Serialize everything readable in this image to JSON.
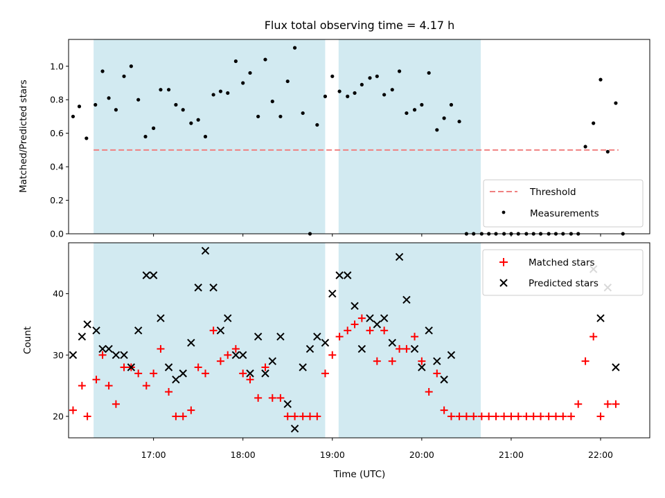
{
  "chart_data": [
    {
      "type": "scatter",
      "title": "Flux total observing time = 4.17 h",
      "ylabel": "Matched/Predicted stars",
      "xlabel": "",
      "ylim": [
        0,
        1.16
      ],
      "yticks": [
        0.0,
        0.2,
        0.4,
        0.6,
        0.8,
        1.0
      ],
      "ytick_labels": [
        "0.0",
        "0.2",
        "0.4",
        "0.6",
        "0.8",
        "1.0"
      ],
      "xlim": [
        16.05,
        22.55
      ],
      "xticks": [
        17,
        18,
        19,
        20,
        21,
        22
      ],
      "shaded_intervals": [
        [
          16.33,
          18.92
        ],
        [
          19.07,
          20.66
        ]
      ],
      "shade_color": "#add8e6",
      "threshold": {
        "name": "Threshold",
        "value": 0.5,
        "x_range": [
          16.33,
          22.2
        ],
        "color": "#f08080"
      },
      "measurements": {
        "name": "Measurements",
        "color": "#000000",
        "points": [
          [
            16.1,
            0.7
          ],
          [
            16.17,
            0.76
          ],
          [
            16.25,
            0.57
          ],
          [
            16.35,
            0.77
          ],
          [
            16.43,
            0.97
          ],
          [
            16.5,
            0.81
          ],
          [
            16.58,
            0.74
          ],
          [
            16.67,
            0.94
          ],
          [
            16.75,
            1.0
          ],
          [
            16.83,
            0.8
          ],
          [
            16.91,
            0.58
          ],
          [
            17.0,
            0.63
          ],
          [
            17.08,
            0.86
          ],
          [
            17.17,
            0.86
          ],
          [
            17.25,
            0.77
          ],
          [
            17.33,
            0.74
          ],
          [
            17.42,
            0.66
          ],
          [
            17.5,
            0.68
          ],
          [
            17.58,
            0.58
          ],
          [
            17.67,
            0.83
          ],
          [
            17.75,
            0.85
          ],
          [
            17.83,
            0.84
          ],
          [
            17.92,
            1.03
          ],
          [
            18.0,
            0.9
          ],
          [
            18.08,
            0.96
          ],
          [
            18.17,
            0.7
          ],
          [
            18.25,
            1.04
          ],
          [
            18.33,
            0.79
          ],
          [
            18.42,
            0.7
          ],
          [
            18.5,
            0.91
          ],
          [
            18.58,
            1.11
          ],
          [
            18.67,
            0.72
          ],
          [
            18.75,
            0.0
          ],
          [
            18.83,
            0.65
          ],
          [
            18.92,
            0.82
          ],
          [
            19.0,
            0.94
          ],
          [
            19.08,
            0.85
          ],
          [
            19.17,
            0.82
          ],
          [
            19.25,
            0.84
          ],
          [
            19.33,
            0.89
          ],
          [
            19.42,
            0.93
          ],
          [
            19.5,
            0.94
          ],
          [
            19.58,
            0.83
          ],
          [
            19.67,
            0.86
          ],
          [
            19.75,
            0.97
          ],
          [
            19.83,
            0.72
          ],
          [
            19.92,
            0.74
          ],
          [
            20.0,
            0.77
          ],
          [
            20.08,
            0.96
          ],
          [
            20.17,
            0.62
          ],
          [
            20.25,
            0.69
          ],
          [
            20.33,
            0.77
          ],
          [
            20.42,
            0.67
          ],
          [
            20.5,
            0.0
          ],
          [
            20.58,
            0.0
          ],
          [
            20.67,
            0.0
          ],
          [
            20.75,
            0.0
          ],
          [
            20.83,
            0.0
          ],
          [
            20.92,
            0.0
          ],
          [
            21.0,
            0.0
          ],
          [
            21.08,
            0.0
          ],
          [
            21.17,
            0.0
          ],
          [
            21.25,
            0.0
          ],
          [
            21.33,
            0.0
          ],
          [
            21.42,
            0.0
          ],
          [
            21.5,
            0.0
          ],
          [
            21.58,
            0.0
          ],
          [
            21.67,
            0.0
          ],
          [
            21.75,
            0.0
          ],
          [
            21.83,
            0.52
          ],
          [
            21.92,
            0.66
          ],
          [
            22.0,
            0.92
          ],
          [
            22.08,
            0.49
          ],
          [
            22.17,
            0.78
          ],
          [
            22.25,
            0.0
          ]
        ]
      },
      "legend": {
        "position": "lower right"
      }
    },
    {
      "type": "scatter",
      "title": "",
      "ylabel": "Count",
      "xlabel": "Time (UTC)",
      "ylim": [
        16.5,
        48.3
      ],
      "yticks": [
        20,
        30,
        40
      ],
      "ytick_labels": [
        "20",
        "30",
        "40"
      ],
      "xlim": [
        16.05,
        22.55
      ],
      "xticks": [
        17,
        18,
        19,
        20,
        21,
        22
      ],
      "xtick_labels": [
        "17:00",
        "18:00",
        "19:00",
        "20:00",
        "21:00",
        "22:00"
      ],
      "shaded_intervals": [
        [
          16.33,
          18.92
        ],
        [
          19.07,
          20.66
        ]
      ],
      "shade_color": "#add8e6",
      "series": [
        {
          "name": "Matched stars",
          "marker": "plus",
          "color": "#ff0000",
          "points": [
            [
              16.1,
              21
            ],
            [
              16.2,
              25
            ],
            [
              16.26,
              20
            ],
            [
              16.36,
              26
            ],
            [
              16.43,
              30
            ],
            [
              16.5,
              25
            ],
            [
              16.58,
              22
            ],
            [
              16.67,
              28
            ],
            [
              16.75,
              28
            ],
            [
              16.83,
              27
            ],
            [
              16.92,
              25
            ],
            [
              17.0,
              27
            ],
            [
              17.08,
              31
            ],
            [
              17.17,
              24
            ],
            [
              17.25,
              20
            ],
            [
              17.33,
              20
            ],
            [
              17.42,
              21
            ],
            [
              17.5,
              28
            ],
            [
              17.58,
              27
            ],
            [
              17.67,
              34
            ],
            [
              17.75,
              29
            ],
            [
              17.83,
              30
            ],
            [
              17.92,
              31
            ],
            [
              18.0,
              27
            ],
            [
              18.08,
              26
            ],
            [
              18.17,
              23
            ],
            [
              18.25,
              28
            ],
            [
              18.33,
              23
            ],
            [
              18.42,
              23
            ],
            [
              18.5,
              20
            ],
            [
              18.58,
              20
            ],
            [
              18.67,
              20
            ],
            [
              18.75,
              20
            ],
            [
              18.83,
              20
            ],
            [
              18.92,
              27
            ],
            [
              19.0,
              30
            ],
            [
              19.08,
              33
            ],
            [
              19.17,
              34
            ],
            [
              19.25,
              35
            ],
            [
              19.33,
              36
            ],
            [
              19.42,
              34
            ],
            [
              19.5,
              29
            ],
            [
              19.58,
              34
            ],
            [
              19.67,
              29
            ],
            [
              19.75,
              31
            ],
            [
              19.83,
              31
            ],
            [
              19.92,
              33
            ],
            [
              20.0,
              29
            ],
            [
              20.08,
              24
            ],
            [
              20.17,
              27
            ],
            [
              20.25,
              21
            ],
            [
              20.33,
              20
            ],
            [
              20.42,
              20
            ],
            [
              20.5,
              20
            ],
            [
              20.58,
              20
            ],
            [
              20.67,
              20
            ],
            [
              20.75,
              20
            ],
            [
              20.83,
              20
            ],
            [
              20.92,
              20
            ],
            [
              21.0,
              20
            ],
            [
              21.08,
              20
            ],
            [
              21.17,
              20
            ],
            [
              21.25,
              20
            ],
            [
              21.33,
              20
            ],
            [
              21.42,
              20
            ],
            [
              21.5,
              20
            ],
            [
              21.58,
              20
            ],
            [
              21.67,
              20
            ],
            [
              21.75,
              22
            ],
            [
              21.83,
              29
            ],
            [
              21.92,
              33
            ],
            [
              22.0,
              20
            ],
            [
              22.08,
              22
            ],
            [
              22.17,
              22
            ]
          ]
        },
        {
          "name": "Predicted stars",
          "marker": "x",
          "color": "#000000",
          "points": [
            [
              16.1,
              30
            ],
            [
              16.2,
              33
            ],
            [
              16.26,
              35
            ],
            [
              16.36,
              34
            ],
            [
              16.43,
              31
            ],
            [
              16.5,
              31
            ],
            [
              16.58,
              30
            ],
            [
              16.67,
              30
            ],
            [
              16.75,
              28
            ],
            [
              16.83,
              34
            ],
            [
              16.92,
              43
            ],
            [
              17.0,
              43
            ],
            [
              17.08,
              36
            ],
            [
              17.17,
              28
            ],
            [
              17.25,
              26
            ],
            [
              17.33,
              27
            ],
            [
              17.42,
              32
            ],
            [
              17.5,
              41
            ],
            [
              17.58,
              47
            ],
            [
              17.67,
              41
            ],
            [
              17.75,
              34
            ],
            [
              17.83,
              36
            ],
            [
              17.92,
              30
            ],
            [
              18.0,
              30
            ],
            [
              18.08,
              27
            ],
            [
              18.17,
              33
            ],
            [
              18.25,
              27
            ],
            [
              18.33,
              29
            ],
            [
              18.42,
              33
            ],
            [
              18.5,
              22
            ],
            [
              18.58,
              18
            ],
            [
              18.67,
              28
            ],
            [
              18.75,
              31
            ],
            [
              18.83,
              33
            ],
            [
              18.92,
              32
            ],
            [
              19.0,
              40
            ],
            [
              19.08,
              43
            ],
            [
              19.17,
              43
            ],
            [
              19.25,
              38
            ],
            [
              19.33,
              31
            ],
            [
              19.42,
              36
            ],
            [
              19.5,
              35
            ],
            [
              19.58,
              36
            ],
            [
              19.67,
              32
            ],
            [
              19.75,
              46
            ],
            [
              19.83,
              39
            ],
            [
              19.92,
              31
            ],
            [
              20.0,
              28
            ],
            [
              20.08,
              34
            ],
            [
              20.17,
              29
            ],
            [
              20.25,
              26
            ],
            [
              20.33,
              30
            ],
            [
              21.92,
              44
            ],
            [
              22.0,
              36
            ],
            [
              22.08,
              41
            ],
            [
              22.17,
              28
            ]
          ]
        }
      ],
      "legend": {
        "position": "upper right"
      }
    }
  ]
}
